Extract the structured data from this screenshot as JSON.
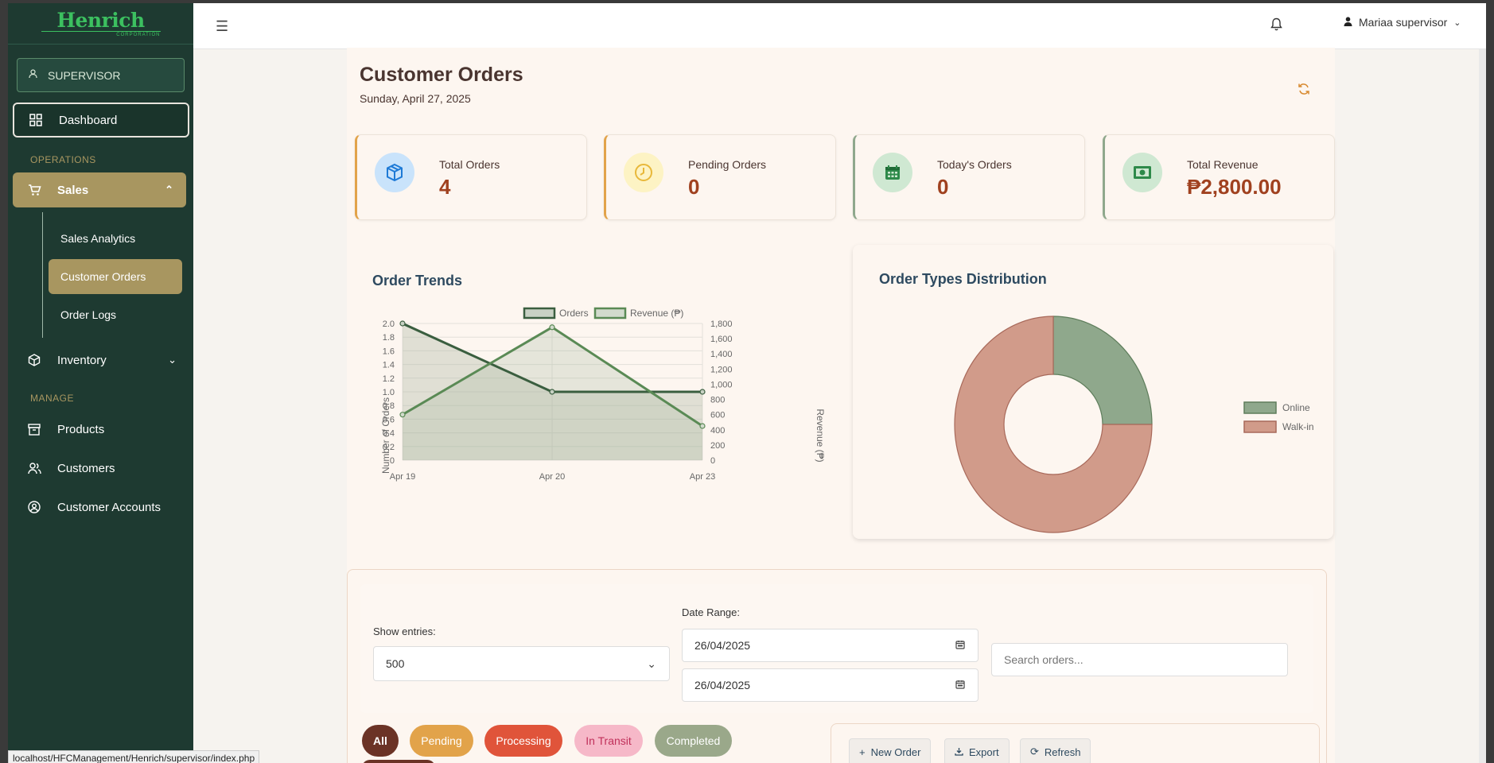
{
  "brand": {
    "name": "Henrich",
    "sub": "CORPORATION"
  },
  "role": {
    "label": "SUPERVISOR"
  },
  "sidebar": {
    "dashboard": "Dashboard",
    "operations_label": "OPERATIONS",
    "sales": "Sales",
    "sales_sub": [
      "Sales Analytics",
      "Customer Orders",
      "Order Logs"
    ],
    "inventory": "Inventory",
    "manage_label": "MANAGE",
    "products": "Products",
    "customers": "Customers",
    "customer_accounts": "Customer Accounts"
  },
  "topbar": {
    "user": "Mariaa supervisor"
  },
  "page": {
    "title": "Customer Orders",
    "date": "Sunday, April 27, 2025"
  },
  "stats": [
    {
      "label": "Total Orders",
      "value": "4",
      "icon": "box-icon",
      "color": "#1e7ad6",
      "bg": "#c9e3fb"
    },
    {
      "label": "Pending Orders",
      "value": "0",
      "icon": "clock-icon",
      "color": "#e8b83a",
      "bg": "#fdf3c4"
    },
    {
      "label": "Today's Orders",
      "value": "0",
      "icon": "calendar-icon",
      "color": "#2e8a4a",
      "bg": "#cfe8d2"
    },
    {
      "label": "Total Revenue",
      "value": "₱2,800.00",
      "icon": "cash-icon",
      "color": "#2e8a4a",
      "bg": "#cfe8d2"
    }
  ],
  "order_trends": {
    "title": "Order Trends",
    "legend": [
      "Orders",
      "Revenue (₱)"
    ],
    "ylabel_left": "Number of Orders",
    "ylabel_right": "Revenue (₱)",
    "left_ticks": [
      "2.0",
      "1.8",
      "1.6",
      "1.4",
      "1.2",
      "1.0",
      "0.8",
      "0.6",
      "0.4",
      "0.2",
      "0"
    ],
    "right_ticks": [
      "1,800",
      "1,600",
      "1,400",
      "1,200",
      "1,000",
      "800",
      "600",
      "400",
      "200",
      "0"
    ]
  },
  "order_types": {
    "title": "Order Types Distribution"
  },
  "chart_data": [
    {
      "type": "line",
      "title": "Order Trends",
      "categories": [
        "Apr 19",
        "Apr 20",
        "Apr 23"
      ],
      "series": [
        {
          "name": "Orders",
          "axis": "left",
          "values": [
            2,
            1,
            1
          ]
        },
        {
          "name": "Revenue (₱)",
          "axis": "right",
          "values": [
            600,
            1750,
            450
          ]
        }
      ],
      "ylim_left": [
        0,
        2
      ],
      "ylim_right": [
        0,
        1800
      ],
      "grid": true,
      "legend": "top"
    },
    {
      "type": "pie",
      "title": "Order Types Distribution",
      "labels": [
        "Online",
        "Walk-in"
      ],
      "values": [
        1,
        3
      ],
      "colors": [
        "#8fa88c",
        "#d19b8a"
      ],
      "legend": "right"
    }
  ],
  "filters": {
    "show_entries_label": "Show entries:",
    "entries_value": "500",
    "date_range_label": "Date Range:",
    "date_from": "26/04/2025",
    "date_to": "26/04/2025",
    "search_placeholder": "Search orders..."
  },
  "status_pills": [
    {
      "label": "All",
      "bg": "#6b3326"
    },
    {
      "label": "Pending",
      "bg": "#e2a34a"
    },
    {
      "label": "Processing",
      "bg": "#e0543a"
    },
    {
      "label": "In Transit",
      "bg": "#f6b8c8"
    },
    {
      "label": "Completed",
      "bg": "#9aa88a"
    }
  ],
  "actions": {
    "new_order": "New Order",
    "export": "Export",
    "refresh": "Refresh"
  },
  "statusbar": "localhost/HFCManagement/Henrich/supervisor/index.php"
}
